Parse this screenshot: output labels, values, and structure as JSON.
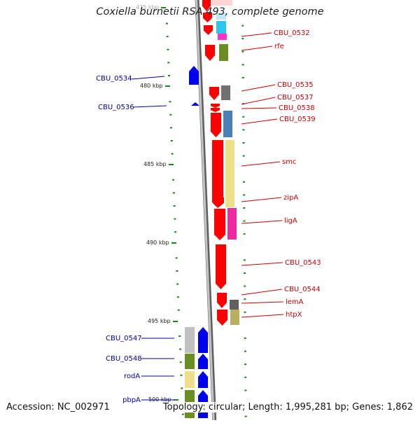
{
  "title": "Coxiella burnetii RSA 493, complete genome",
  "accession": "Accession: NC_002971",
  "topology": "Topology: circular; Length: 1,995,281 bp; Genes: 1,862",
  "colors": {
    "forward": "#ff0000",
    "reverse": "#0000ee",
    "backbone": "#909090",
    "tick": "#1a8a1a",
    "forward_label": "#cc0000",
    "reverse_label": "#0000aa"
  },
  "scale_labels": [
    "475 kbp",
    "480 kbp",
    "485 kbp",
    "490 kbp",
    "495 kbp",
    "500 kbp"
  ],
  "forward_genes": [
    {
      "label": "CBU_0532",
      "cog_color": "#ff33cc"
    },
    {
      "label": "rfe",
      "cog_color": "#6b8e23"
    },
    {
      "label": "CBU_0535",
      "cog_color": "#707070"
    },
    {
      "label": "CBU_0537",
      "cog_color": ""
    },
    {
      "label": "CBU_0538",
      "cog_color": ""
    },
    {
      "label": "CBU_0539",
      "cog_color": "#4a7fb8"
    },
    {
      "label": "smc",
      "cog_color": "#eee08a"
    },
    {
      "label": "zipA",
      "cog_color": "#eee08a"
    },
    {
      "label": "ligA",
      "cog_color": "#ee2aa0"
    },
    {
      "label": "CBU_0543",
      "cog_color": ""
    },
    {
      "label": "CBU_0544",
      "cog_color": "#606060"
    },
    {
      "label": "lemA",
      "cog_color": ""
    },
    {
      "label": "htpX",
      "cog_color": "#b8b060"
    }
  ],
  "reverse_genes": [
    {
      "label": "CBU_0534",
      "cog_color": ""
    },
    {
      "label": "CBU_0536",
      "cog_color": ""
    },
    {
      "label": "CBU_0547",
      "cog_color": "#c0c0c0"
    },
    {
      "label": "CBU_0548",
      "cog_color": "#6b8e23"
    },
    {
      "label": "rodA",
      "cog_color": "#eee08a"
    },
    {
      "label": "pbpA",
      "cog_color": "#6b8e23"
    }
  ]
}
